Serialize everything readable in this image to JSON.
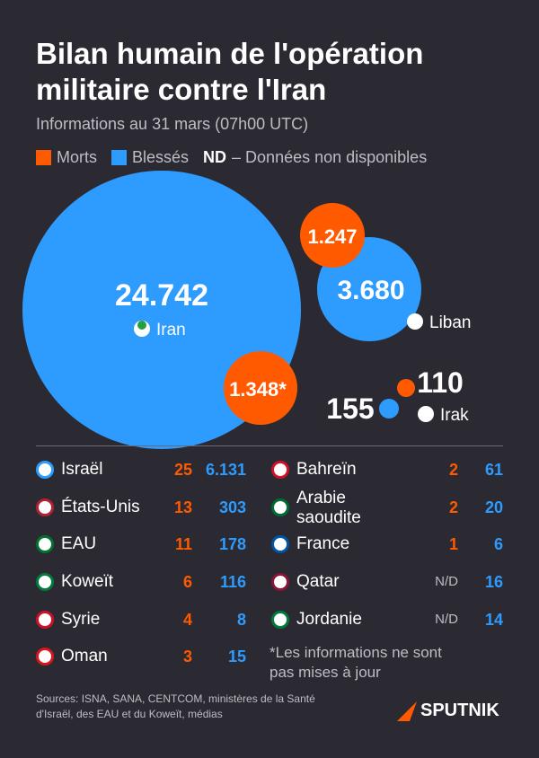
{
  "header": {
    "title": "Bilan humain de l'opération militaire contre l'Iran",
    "subtitle": "Informations au 31 mars (07h00 UTC)"
  },
  "legend": {
    "killed": "Morts",
    "wounded": "Blessés",
    "nd": "ND",
    "nd_text": "– Données non disponibles"
  },
  "bubbles": {
    "iran": {
      "name": "Iran",
      "wounded": "24.742",
      "killed": "1.348*"
    },
    "liban": {
      "name": "Liban",
      "wounded": "3.680",
      "killed": "1.247"
    },
    "irak": {
      "name": "Irak",
      "wounded": "155",
      "killed": "110"
    }
  },
  "table": {
    "left": [
      [
        "Israël",
        "25",
        "6.131"
      ],
      [
        "États-Unis",
        "13",
        "303"
      ],
      [
        "EAU",
        "11",
        "178"
      ],
      [
        "Koweït",
        "6",
        "116"
      ],
      [
        "Syrie",
        "4",
        "8"
      ],
      [
        "Oman",
        "3",
        "15"
      ]
    ],
    "right": [
      [
        "Bahreïn",
        "2",
        "61"
      ],
      [
        "Arabie saoudite",
        "2",
        "20"
      ],
      [
        "France",
        "1",
        "6"
      ],
      [
        "Qatar",
        "N/D",
        "16"
      ],
      [
        "Jordanie",
        "N/D",
        "14"
      ]
    ]
  },
  "note": "*Les informations ne sont pas mises à jour",
  "footer": {
    "sources": "Sources: ISNA, SANA, CENTCOM, ministères de la Santé d'Israël, des EAU et du Koweït, médias",
    "brand": "SPUTNIK"
  }
}
